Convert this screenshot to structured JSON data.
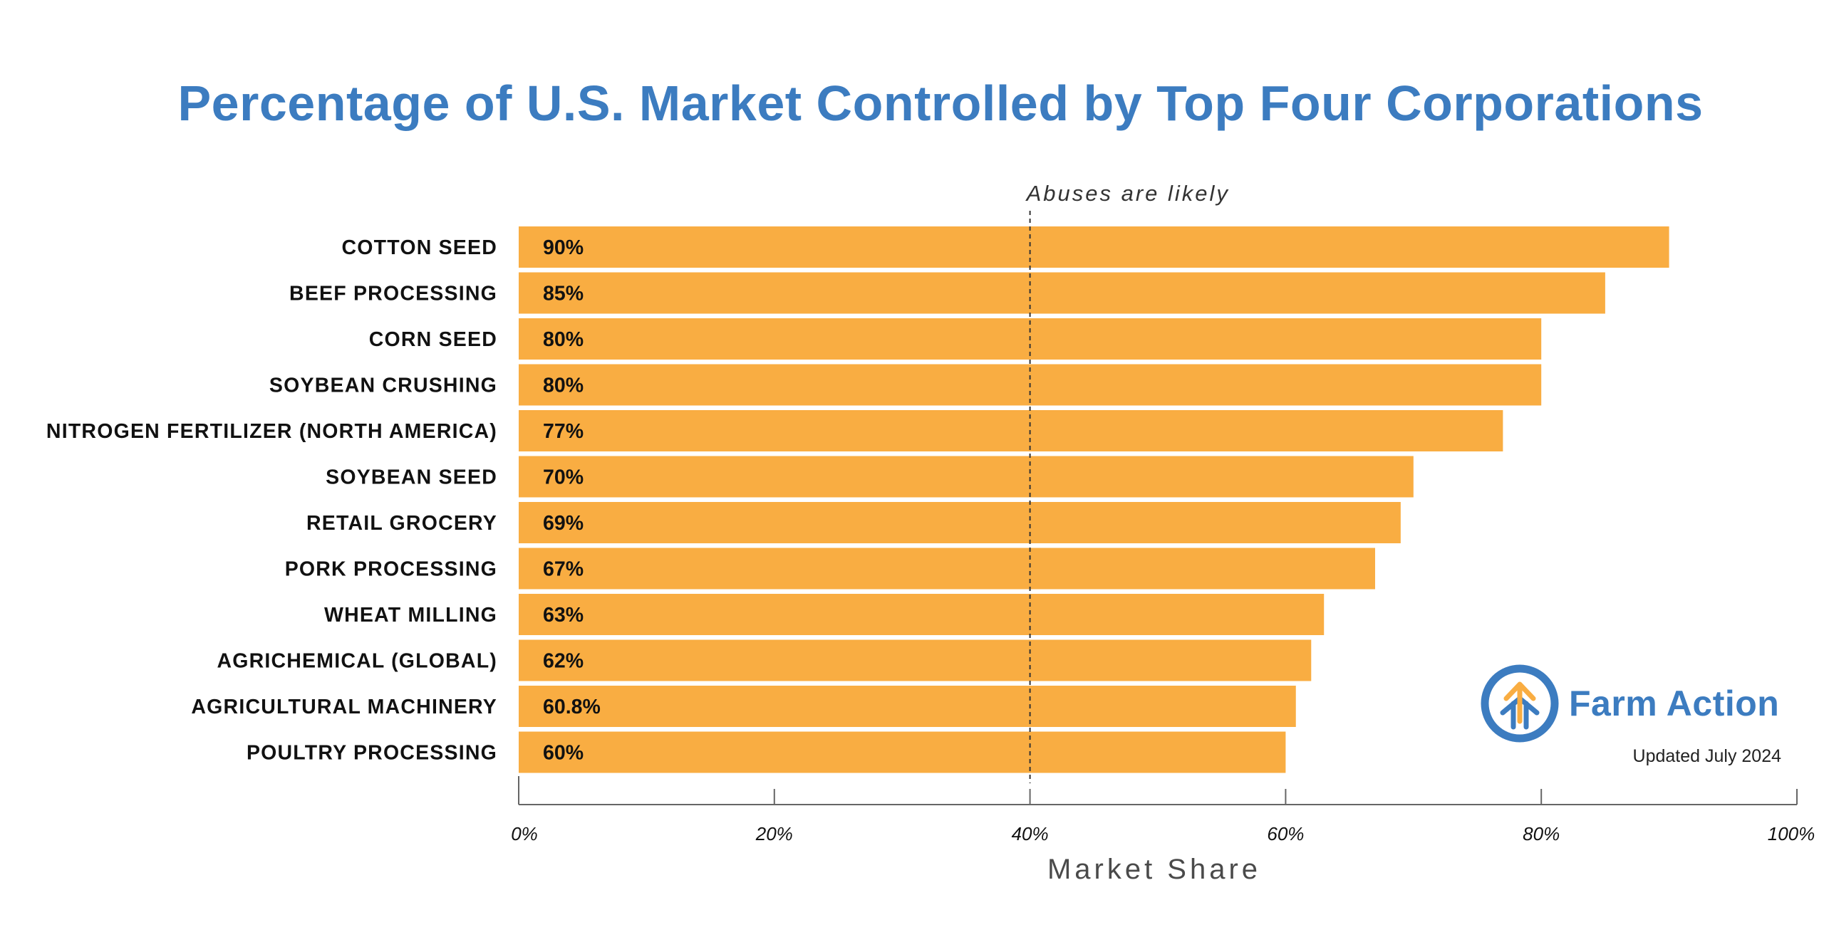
{
  "colors": {
    "title": "#3c7cc0",
    "bar": "#f9ad42",
    "axis": "#666666",
    "logo_blue": "#3c7cc0",
    "logo_orange": "#f9ad42"
  },
  "brand": {
    "logo_icon": "upward-arrows-circle-icon",
    "name": "Farm Action"
  },
  "note": "Updated July 2024",
  "chart_data": {
    "type": "bar",
    "orientation": "horizontal",
    "title": "Percentage of U.S. Market Controlled by Top Four Corporations",
    "xlabel": "Market Share",
    "ylabel": "",
    "xlim": [
      0,
      100
    ],
    "x_ticks": [
      0,
      20,
      40,
      60,
      80,
      100
    ],
    "x_tick_labels": [
      "0%",
      "20%",
      "40%",
      "60%",
      "80%",
      "100%"
    ],
    "grid": false,
    "categories": [
      "COTTON SEED",
      "BEEF PROCESSING",
      "CORN SEED",
      "SOYBEAN CRUSHING",
      "NITROGEN FERTILIZER (NORTH AMERICA)",
      "SOYBEAN SEED",
      "RETAIL GROCERY",
      "PORK PROCESSING",
      "WHEAT MILLING",
      "AGRICHEMICAL (GLOBAL)",
      "AGRICULTURAL MACHINERY",
      "POULTRY PROCESSING"
    ],
    "values": [
      90,
      85,
      80,
      80,
      77,
      70,
      69,
      67,
      63,
      62,
      60.8,
      60
    ],
    "data_labels": [
      "90%",
      "85%",
      "80%",
      "80%",
      "77%",
      "70%",
      "69%",
      "67%",
      "63%",
      "62%",
      "60.8%",
      "60%"
    ],
    "reference_line": {
      "value": 40,
      "style": "dashed",
      "label": "Abuses are likely"
    }
  }
}
